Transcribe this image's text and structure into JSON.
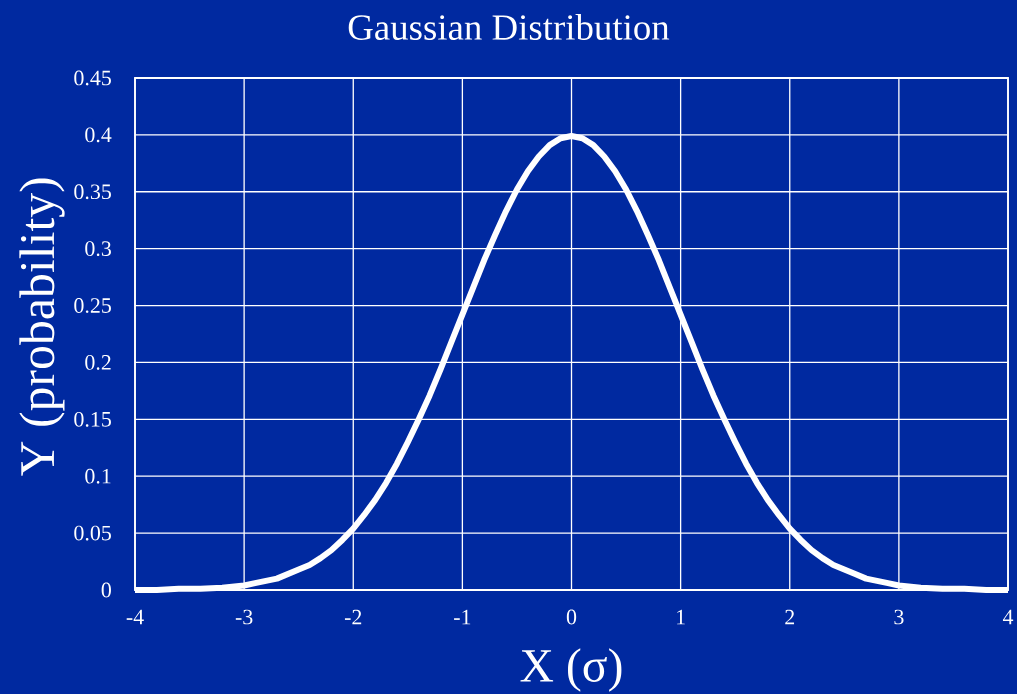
{
  "chart_data": {
    "type": "line",
    "title": "Gaussian Distribution",
    "xlabel": "X (σ)",
    "ylabel": "Y (probability)",
    "x": [
      -4,
      -3.8,
      -3.6,
      -3.4,
      -3.2,
      -3,
      -2.9,
      -2.8,
      -2.7,
      -2.6,
      -2.5,
      -2.4,
      -2.3,
      -2.2,
      -2.1,
      -2,
      -1.9,
      -1.8,
      -1.7,
      -1.6,
      -1.5,
      -1.4,
      -1.3,
      -1.2,
      -1.1,
      -1,
      -0.9,
      -0.8,
      -0.7,
      -0.6,
      -0.5,
      -0.4,
      -0.3,
      -0.2,
      -0.1,
      0,
      0.1,
      0.2,
      0.3,
      0.4,
      0.5,
      0.6,
      0.7,
      0.8,
      0.9,
      1,
      1.1,
      1.2,
      1.3,
      1.4,
      1.5,
      1.6,
      1.7,
      1.8,
      1.9,
      2,
      2.1,
      2.2,
      2.3,
      2.4,
      2.5,
      2.6,
      2.7,
      2.8,
      2.9,
      3,
      3.2,
      3.4,
      3.6,
      3.8,
      4
    ],
    "values": [
      0.0,
      0.0,
      0.001,
      0.001,
      0.002,
      0.004,
      0.006,
      0.008,
      0.01,
      0.014,
      0.018,
      0.022,
      0.028,
      0.035,
      0.044,
      0.054,
      0.066,
      0.079,
      0.094,
      0.111,
      0.13,
      0.15,
      0.171,
      0.194,
      0.218,
      0.242,
      0.266,
      0.29,
      0.312,
      0.333,
      0.352,
      0.368,
      0.381,
      0.391,
      0.397,
      0.399,
      0.397,
      0.391,
      0.381,
      0.368,
      0.352,
      0.333,
      0.312,
      0.29,
      0.266,
      0.242,
      0.218,
      0.194,
      0.171,
      0.15,
      0.13,
      0.111,
      0.094,
      0.079,
      0.066,
      0.054,
      0.044,
      0.035,
      0.028,
      0.022,
      0.018,
      0.014,
      0.01,
      0.008,
      0.006,
      0.004,
      0.002,
      0.001,
      0.001,
      0.0,
      0.0
    ],
    "color": "#ffffff",
    "xlim": [
      -4,
      4
    ],
    "xticks": [
      -4,
      -3,
      -2,
      -1,
      0,
      1,
      2,
      3,
      4
    ],
    "ylim": [
      0,
      0.45
    ],
    "yticks": [
      0,
      0.05,
      0.1,
      0.15,
      0.2,
      0.25,
      0.3,
      0.35,
      0.4,
      0.45
    ],
    "grid": true,
    "marker": "none",
    "line_style": "solid"
  }
}
